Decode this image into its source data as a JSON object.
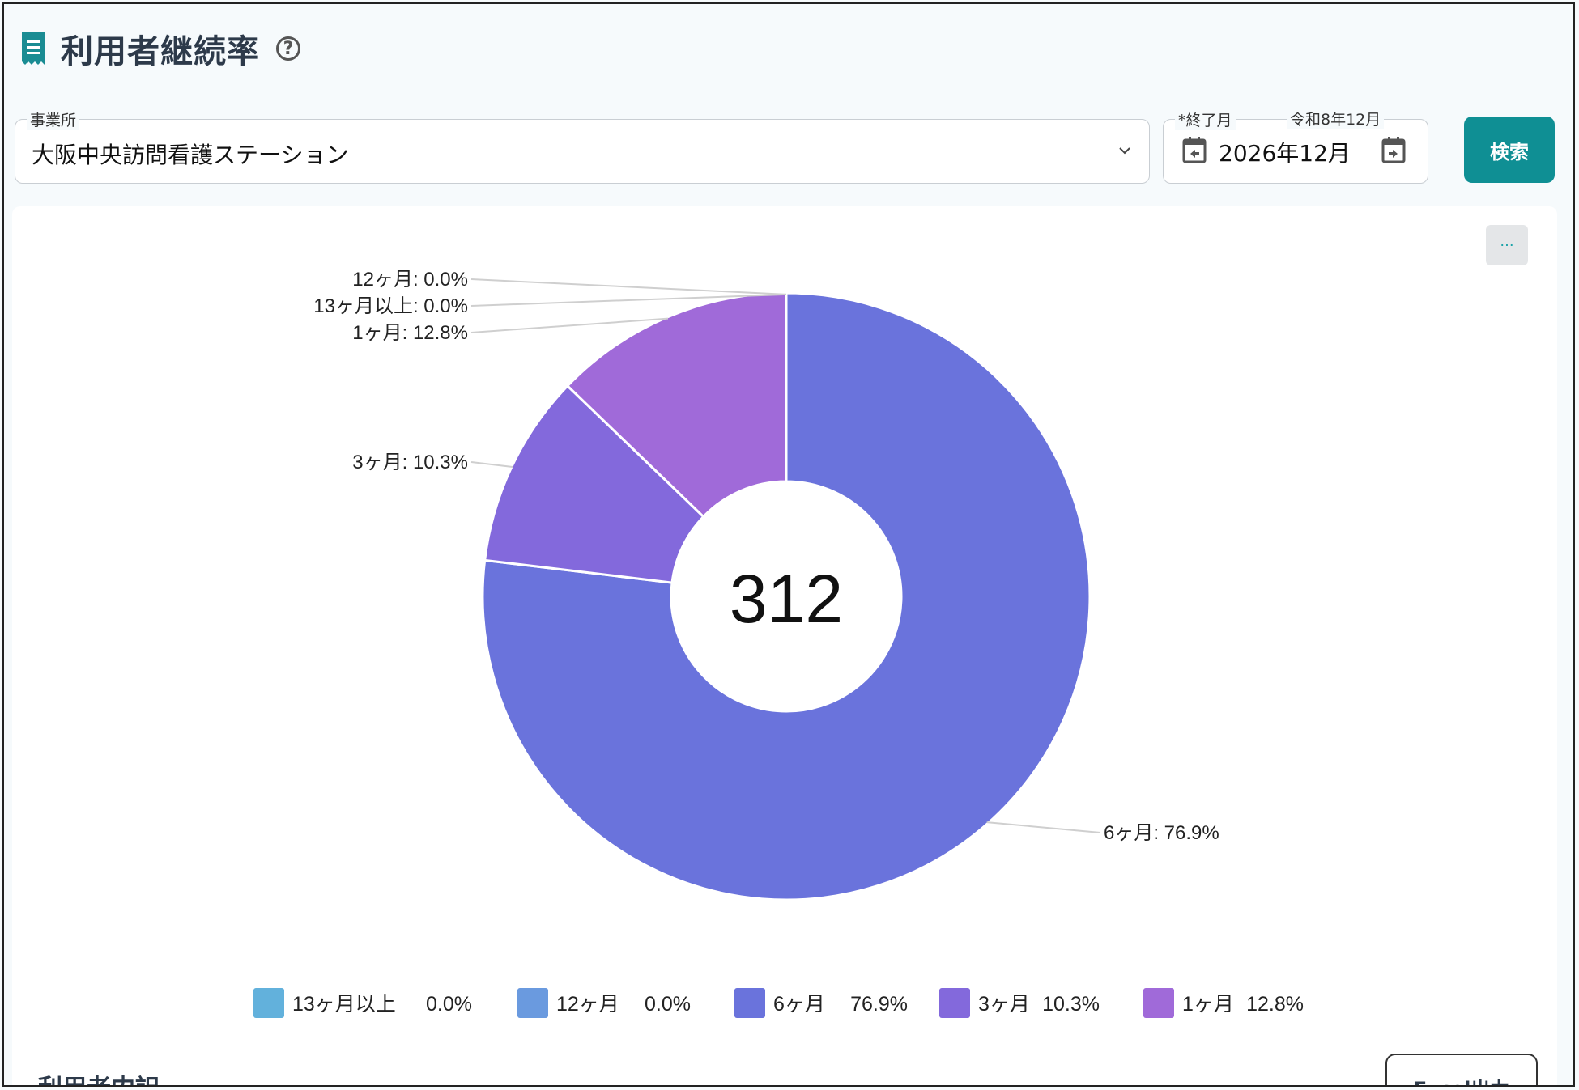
{
  "header": {
    "title": "利用者継続率",
    "help_icon": "question-circle-icon"
  },
  "filters": {
    "office_label": "事業所",
    "office_value": "大阪中央訪問看護ステーション",
    "end_month_label": "*終了月",
    "era_label": "令和8年12月",
    "end_month_value": "2026年12月",
    "search_label": "検索"
  },
  "more_label": "···",
  "chart_data": {
    "type": "pie",
    "donut": true,
    "center_text": "312",
    "slices": [
      {
        "name": "6ヶ月",
        "value": 76.9,
        "label": "6ヶ月: 76.9%",
        "legend_value": "76.9%",
        "color": "#6a73dc"
      },
      {
        "name": "3ヶ月",
        "value": 10.3,
        "label": "3ヶ月: 10.3%",
        "legend_value": "10.3%",
        "color": "#8369dc"
      },
      {
        "name": "1ヶ月",
        "value": 12.8,
        "label": "1ヶ月: 12.8%",
        "legend_value": "12.8%",
        "color": "#a06ad9"
      },
      {
        "name": "13ヶ月以上",
        "value": 0.0,
        "label": "13ヶ月以上: 0.0%",
        "legend_value": "0.0%",
        "color": "#62b1dc"
      },
      {
        "name": "12ヶ月",
        "value": 0.0,
        "label": "12ヶ月: 0.0%",
        "legend_value": "0.0%",
        "color": "#6a9adf"
      }
    ],
    "legend_order": [
      "13ヶ月以上",
      "12ヶ月",
      "6ヶ月",
      "3ヶ月",
      "1ヶ月"
    ]
  },
  "footer": {
    "section_title": "利用者内訳",
    "excel_label": "Excel出力"
  }
}
